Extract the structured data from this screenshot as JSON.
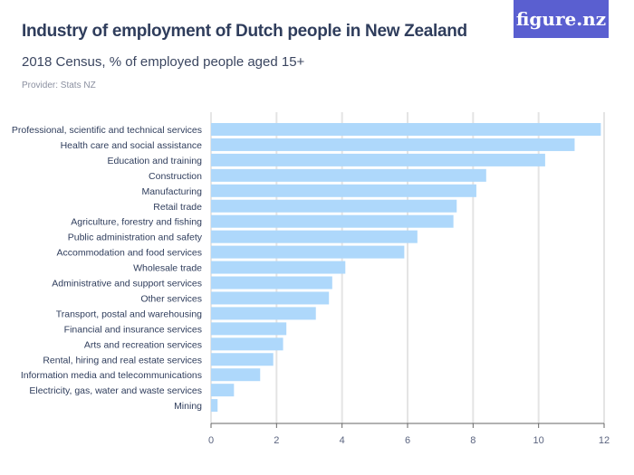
{
  "header": {
    "title": "Industry of employment of Dutch people in New Zealand",
    "subtitle": "2018 Census, % of employed people aged 15+",
    "provider": "Provider: Stats NZ",
    "logo": "figure.nz"
  },
  "chart_data": {
    "type": "bar",
    "orientation": "horizontal",
    "title": "Industry of employment of Dutch people in New Zealand",
    "subtitle": "2018 Census, % of employed people aged 15+",
    "categories": [
      "Professional, scientific and technical services",
      "Health care and social assistance",
      "Education and training",
      "Construction",
      "Manufacturing",
      "Retail trade",
      "Agriculture, forestry and fishing",
      "Public administration and safety",
      "Accommodation and food services",
      "Wholesale trade",
      "Administrative and support services",
      "Other services",
      "Transport, postal and warehousing",
      "Financial and insurance services",
      "Arts and recreation services",
      "Rental, hiring and real estate services",
      "Information media and telecommunications",
      "Electricity, gas, water and waste services",
      "Mining"
    ],
    "values": [
      11.9,
      11.1,
      10.2,
      8.4,
      8.1,
      7.5,
      7.4,
      6.3,
      5.9,
      4.1,
      3.7,
      3.6,
      3.2,
      2.3,
      2.2,
      1.9,
      1.5,
      0.7,
      0.2
    ],
    "xlim": [
      0,
      12
    ],
    "xticks": [
      "0",
      "2",
      "4",
      "6",
      "8",
      "10",
      "12"
    ],
    "grid": true,
    "bar_color": "#aed8fb"
  }
}
